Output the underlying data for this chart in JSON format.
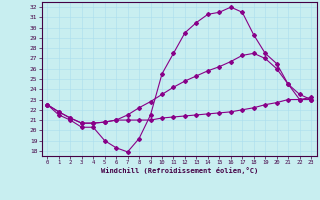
{
  "xlabel": "Windchill (Refroidissement éolien,°C)",
  "background_color": "#c8eef0",
  "line_color": "#880088",
  "grid_color": "#aaddee",
  "xlim": [
    -0.5,
    23.5
  ],
  "ylim": [
    17.5,
    32.5
  ],
  "yticks": [
    18,
    19,
    20,
    21,
    22,
    23,
    24,
    25,
    26,
    27,
    28,
    29,
    30,
    31,
    32
  ],
  "xticks": [
    0,
    1,
    2,
    3,
    4,
    5,
    6,
    7,
    8,
    9,
    10,
    11,
    12,
    13,
    14,
    15,
    16,
    17,
    18,
    19,
    20,
    21,
    22,
    23
  ],
  "line1_x": [
    0,
    1,
    2,
    3,
    4,
    5,
    6,
    7,
    8,
    9,
    10,
    11,
    12,
    13,
    14,
    15,
    16,
    17,
    18,
    19,
    20,
    21,
    22,
    23
  ],
  "line1_y": [
    22.5,
    21.5,
    21.0,
    20.3,
    20.3,
    19.0,
    18.3,
    17.9,
    19.2,
    21.5,
    25.5,
    27.5,
    29.5,
    30.5,
    31.3,
    31.5,
    32.0,
    31.5,
    29.3,
    27.5,
    26.5,
    24.5,
    23.5,
    23.0
  ],
  "line2_x": [
    0,
    1,
    2,
    3,
    4,
    5,
    6,
    7,
    8,
    9,
    10,
    11,
    12,
    13,
    14,
    15,
    16,
    17,
    18,
    19,
    20,
    21,
    22,
    23
  ],
  "line2_y": [
    22.5,
    21.8,
    21.2,
    20.7,
    20.7,
    20.8,
    21.0,
    21.5,
    22.2,
    22.8,
    23.5,
    24.2,
    24.8,
    25.3,
    25.8,
    26.2,
    26.7,
    27.3,
    27.5,
    27.0,
    26.0,
    24.5,
    23.0,
    23.0
  ],
  "line3_x": [
    0,
    1,
    2,
    3,
    4,
    5,
    6,
    7,
    8,
    9,
    10,
    11,
    12,
    13,
    14,
    15,
    16,
    17,
    18,
    19,
    20,
    21,
    22,
    23
  ],
  "line3_y": [
    22.5,
    21.8,
    21.2,
    20.7,
    20.7,
    20.8,
    21.0,
    21.0,
    21.0,
    21.0,
    21.2,
    21.3,
    21.4,
    21.5,
    21.6,
    21.7,
    21.8,
    22.0,
    22.2,
    22.5,
    22.7,
    23.0,
    23.0,
    23.2
  ]
}
